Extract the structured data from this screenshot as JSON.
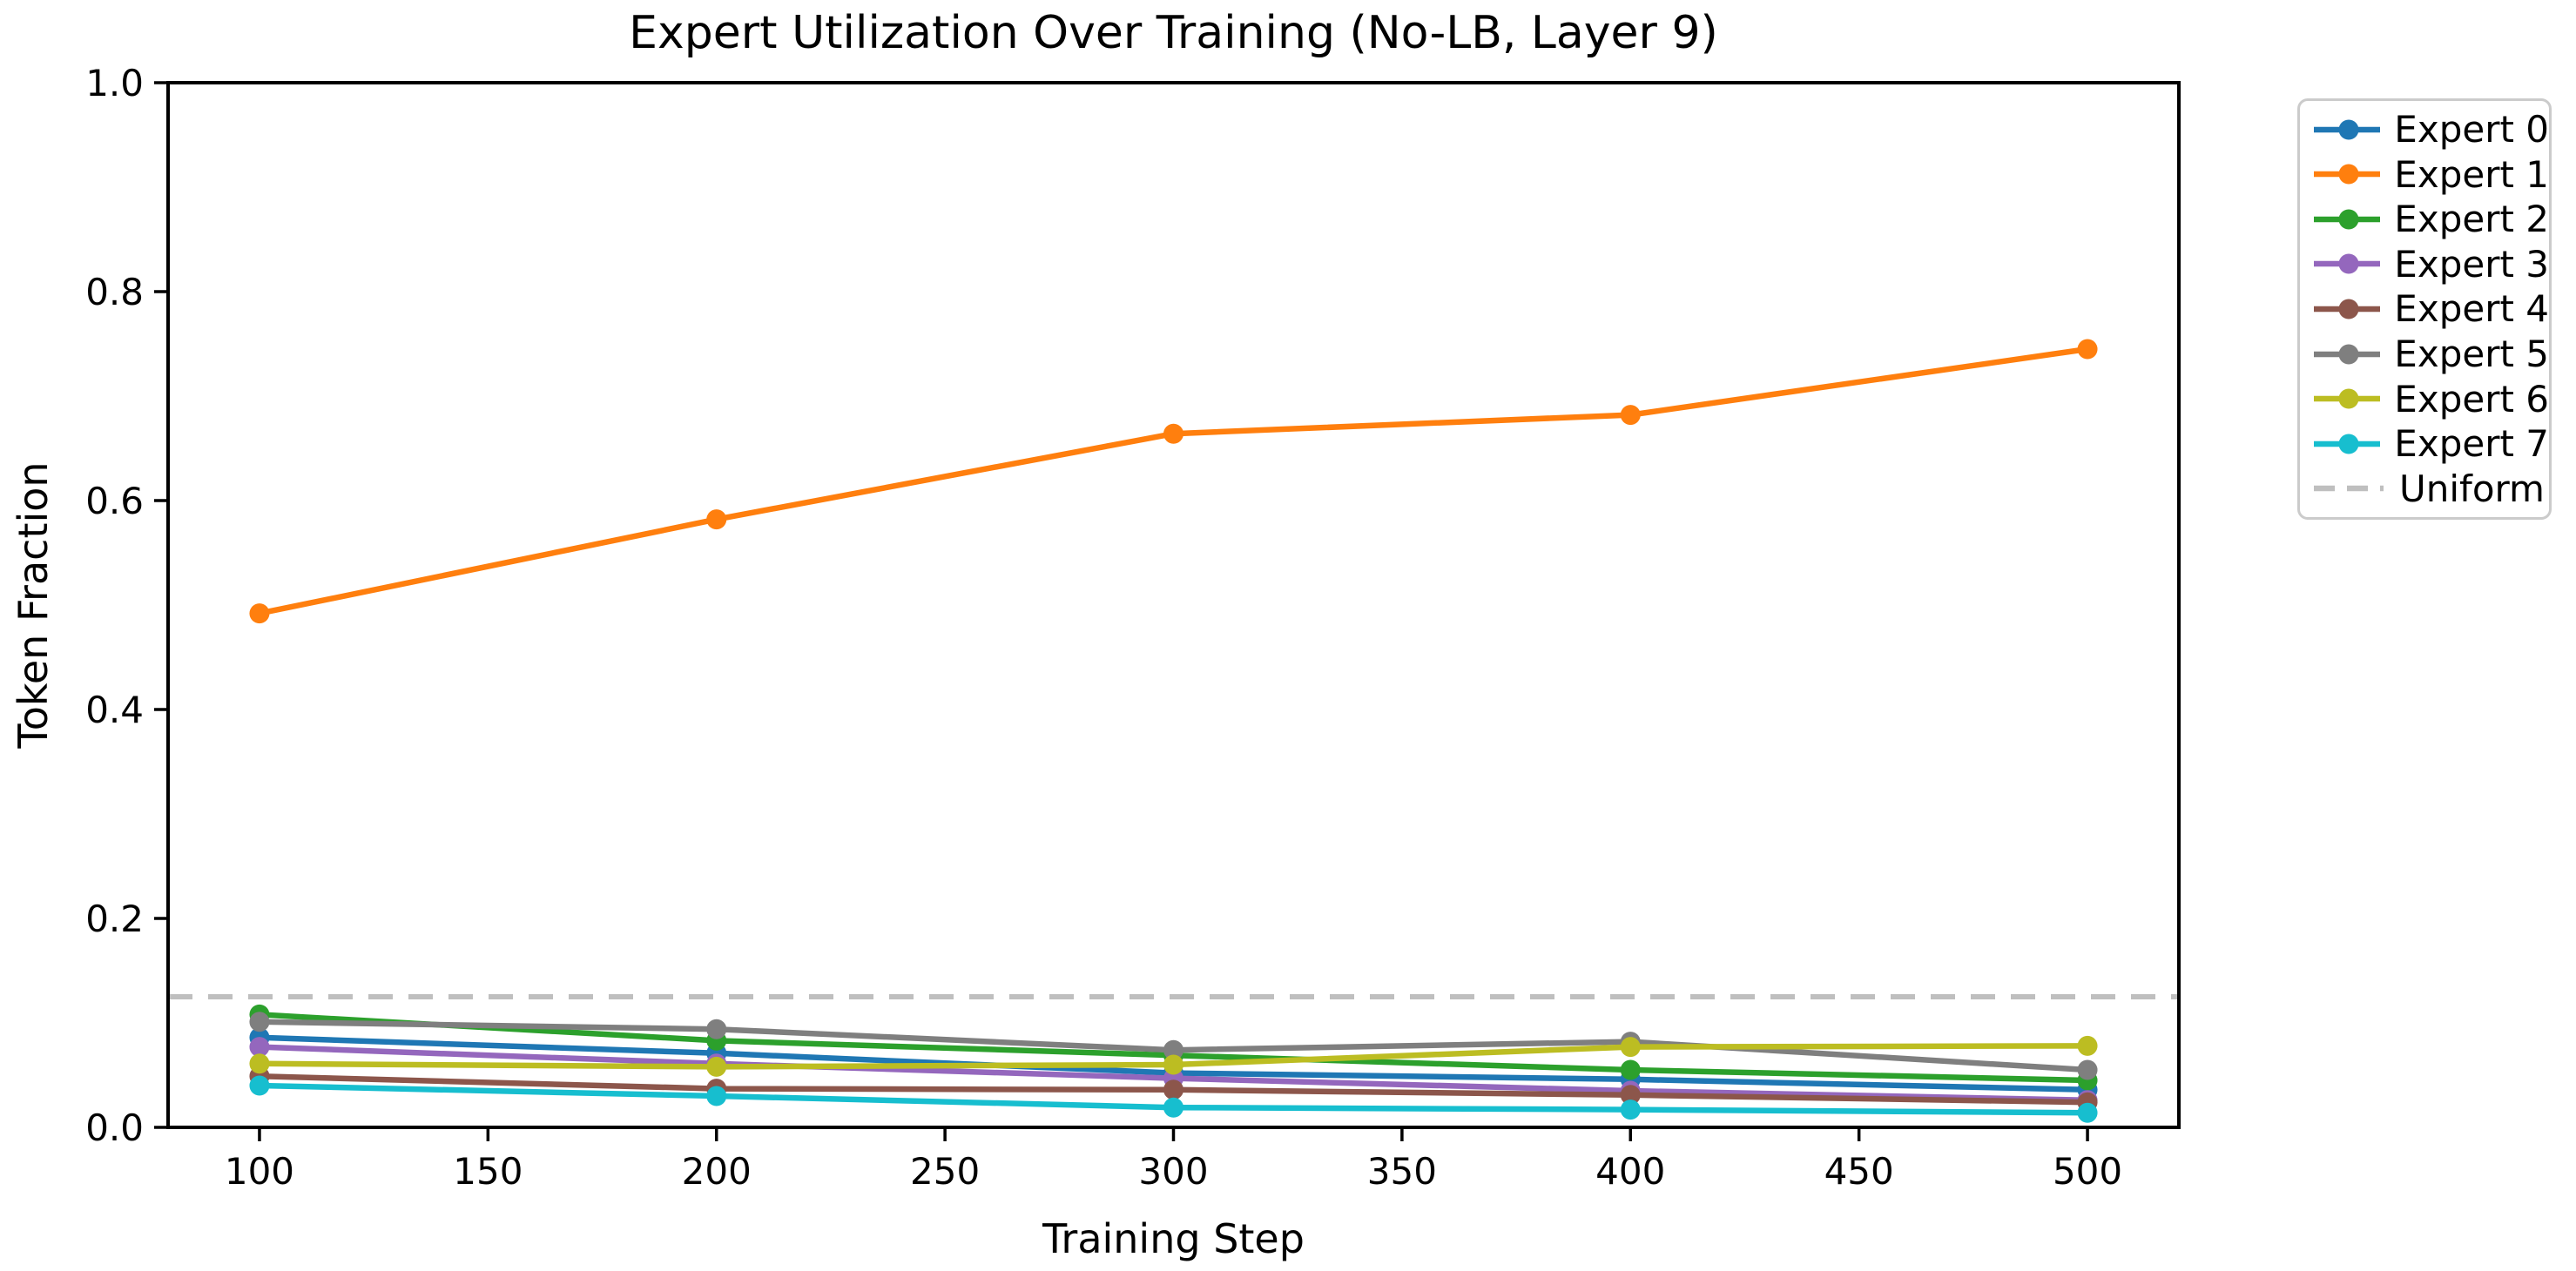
{
  "figure": {
    "title": "Expert Utilization Over Training (No-LB, Layer 9)",
    "xlabel": "Training Step",
    "ylabel": "Token Fraction"
  },
  "chart_data": {
    "type": "line",
    "title": "Expert Utilization Over Training (No-LB, Layer 9)",
    "xlabel": "Training Step",
    "ylabel": "Token Fraction",
    "x": [
      100,
      200,
      300,
      400,
      500
    ],
    "series": [
      {
        "name": "Expert 0",
        "color": "#1f77b4",
        "values": [
          0.086,
          0.071,
          0.052,
          0.046,
          0.036
        ]
      },
      {
        "name": "Expert 1",
        "color": "#ff7f0e",
        "values": [
          0.492,
          0.582,
          0.664,
          0.682,
          0.745
        ]
      },
      {
        "name": "Expert 2",
        "color": "#2ca02c",
        "values": [
          0.108,
          0.083,
          0.069,
          0.055,
          0.045
        ]
      },
      {
        "name": "Expert 3",
        "color": "#9467bd",
        "values": [
          0.077,
          0.061,
          0.047,
          0.035,
          0.026
        ]
      },
      {
        "name": "Expert 4",
        "color": "#8c564b",
        "values": [
          0.049,
          0.037,
          0.036,
          0.031,
          0.024
        ]
      },
      {
        "name": "Expert 5",
        "color": "#7f7f7f",
        "values": [
          0.101,
          0.094,
          0.074,
          0.082,
          0.055
        ]
      },
      {
        "name": "Expert 6",
        "color": "#bcbd22",
        "values": [
          0.061,
          0.058,
          0.06,
          0.077,
          0.078
        ]
      },
      {
        "name": "Expert 7",
        "color": "#17becf",
        "values": [
          0.04,
          0.03,
          0.019,
          0.017,
          0.014
        ]
      }
    ],
    "reference_lines": [
      {
        "name": "Uniform",
        "value": 0.125,
        "color": "#bfbfbf",
        "style": "dashed"
      }
    ],
    "xlim": [
      80,
      520
    ],
    "ylim": [
      0.0,
      1.0
    ],
    "x_ticks": [
      "100",
      "150",
      "200",
      "250",
      "300",
      "350",
      "400",
      "450",
      "500"
    ],
    "x_tick_values": [
      100,
      150,
      200,
      250,
      300,
      350,
      400,
      450,
      500
    ],
    "y_ticks": [
      "0.0",
      "0.2",
      "0.4",
      "0.6",
      "0.8",
      "1.0"
    ],
    "y_tick_values": [
      0.0,
      0.2,
      0.4,
      0.6,
      0.8,
      1.0
    ],
    "grid": false,
    "legend_position": "outside-right",
    "legend": [
      "Expert 0",
      "Expert 1",
      "Expert 2",
      "Expert 3",
      "Expert 4",
      "Expert 5",
      "Expert 6",
      "Expert 7",
      "Uniform"
    ],
    "line_style": {
      "line_width": 6.5,
      "marker": "circle",
      "marker_radius": 11.5
    }
  }
}
